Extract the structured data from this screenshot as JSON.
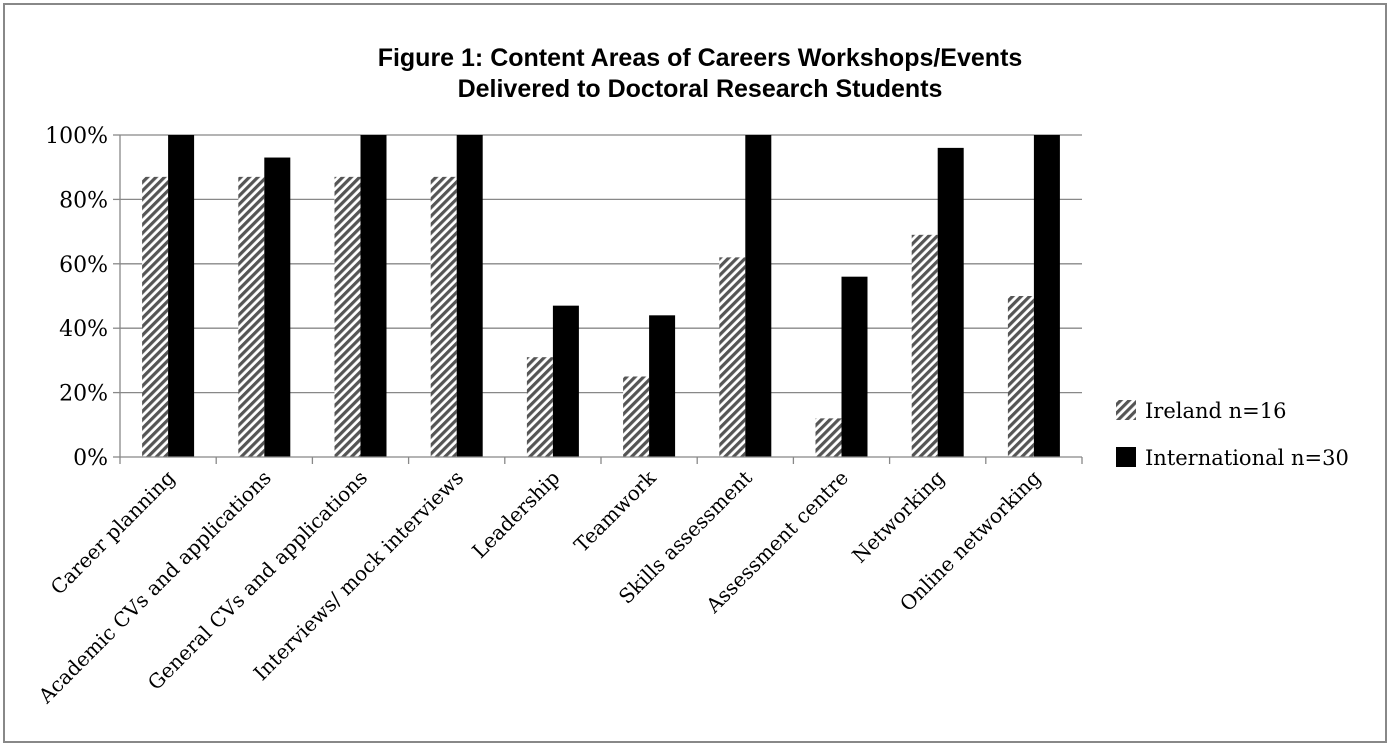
{
  "chart_data": {
    "type": "bar",
    "title": "Figure 1: Content Areas of Careers Workshops/Events Delivered to Doctoral Research Students",
    "title_lines": [
      "Figure 1: Content Areas of Careers Workshops/Events",
      "Delivered to Doctoral Research Students"
    ],
    "categories": [
      "Career planning",
      "Academic CVs and applications",
      "General CVs and applications",
      "Interviews/ mock interviews",
      "Leadership",
      "Teamwork",
      "Skills assessment",
      "Assessment centre",
      "Networking",
      "Online networking"
    ],
    "series": [
      {
        "name": "Ireland n=16",
        "values": [
          87,
          87,
          87,
          87,
          31,
          25,
          62,
          12,
          69,
          50
        ],
        "fill": "hatch",
        "color": "#555555"
      },
      {
        "name": "International n=30",
        "values": [
          100,
          93,
          100,
          100,
          47,
          44,
          100,
          56,
          96,
          100
        ],
        "fill": "solid",
        "color": "#000000"
      }
    ],
    "ylim": [
      0,
      100
    ],
    "yticks": [
      "0%",
      "20%",
      "40%",
      "60%",
      "80%",
      "100%"
    ],
    "grid": true,
    "legend": "right",
    "xlabel": "",
    "ylabel": ""
  }
}
